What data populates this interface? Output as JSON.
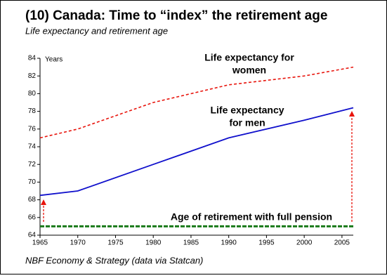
{
  "chart_data": {
    "type": "line",
    "title": "(10) Canada: Time to “index” the retirement age",
    "subtitle": "Life expectancy and retirement age",
    "source": "NBF Economy & Strategy (data via Statcan)",
    "y_label": "Years",
    "xlim": [
      1965,
      2006.5
    ],
    "ylim": [
      64,
      84
    ],
    "xticks": [
      1965,
      1970,
      1975,
      1980,
      1985,
      1990,
      1995,
      2000,
      2005
    ],
    "yticks": [
      64,
      66,
      68,
      70,
      72,
      74,
      76,
      78,
      80,
      82,
      84
    ],
    "series": [
      {
        "color": "#e8140c",
        "dash": "4,3",
        "width": 1.6,
        "x": [
          1965,
          1970,
          1980,
          1990,
          2000,
          2006.5
        ],
        "values": [
          75,
          76,
          79,
          81,
          82,
          83
        ]
      },
      {
        "color": "#1010cc",
        "dash": "",
        "width": 1.8,
        "x": [
          1965,
          1970,
          1980,
          1990,
          2000,
          2006.5
        ],
        "values": [
          68.5,
          69,
          72,
          75,
          77,
          78.4
        ]
      },
      {
        "color": "#1a7a1a",
        "dash": "6,2",
        "width": 3,
        "x": [
          1965,
          2006.5
        ],
        "values": [
          65,
          65
        ]
      }
    ],
    "annotations": [
      {
        "lines": [
          "Life expectancy for",
          "women"
        ]
      },
      {
        "lines": [
          "Life expectancy",
          "for men"
        ]
      },
      {
        "lines": [
          "Age of retirement with full pension"
        ]
      }
    ]
  }
}
